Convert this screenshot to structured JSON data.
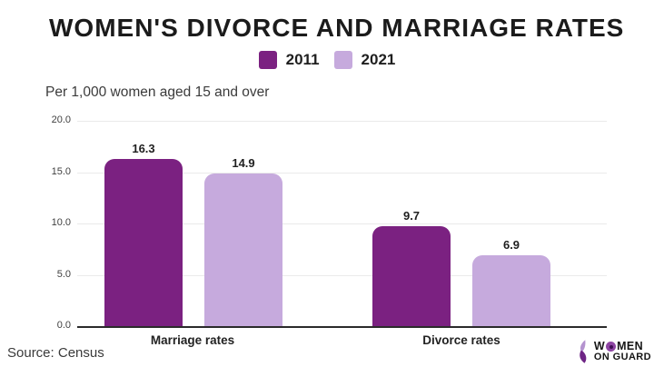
{
  "header": {
    "title": "WOMEN'S DIVORCE AND MARRIAGE RATES"
  },
  "subtitle": "Per 1,000 women aged 15 and over",
  "legend": {
    "items": [
      {
        "label": "2011",
        "color": "#7b2181"
      },
      {
        "label": "2021",
        "color": "#c6aadd"
      }
    ]
  },
  "chart_data": {
    "type": "bar",
    "title": "WOMEN'S DIVORCE AND MARRIAGE RATES",
    "subtitle": "Per 1,000 women aged 15 and over",
    "categories": [
      "Marriage rates",
      "Divorce rates"
    ],
    "series": [
      {
        "name": "2011",
        "color": "#7b2181",
        "values": [
          16.3,
          9.7
        ]
      },
      {
        "name": "2021",
        "color": "#c6aadd",
        "values": [
          14.9,
          6.9
        ]
      }
    ],
    "ylim": [
      0,
      20
    ],
    "yticks": [
      0.0,
      5.0,
      10.0,
      15.0,
      20.0
    ],
    "ytick_format": "one_decimal",
    "grid": true,
    "legend_position": "top",
    "colors": {
      "grid": "#eaeaea",
      "axis_line": "#2b2b2b",
      "dark_series": "#7b2181",
      "light_series": "#c6aadd"
    }
  },
  "footer": {
    "source": "Source: Census"
  },
  "brand": {
    "line1_pre": "W",
    "line1_post": "MEN",
    "line2": "ON GUARD"
  }
}
